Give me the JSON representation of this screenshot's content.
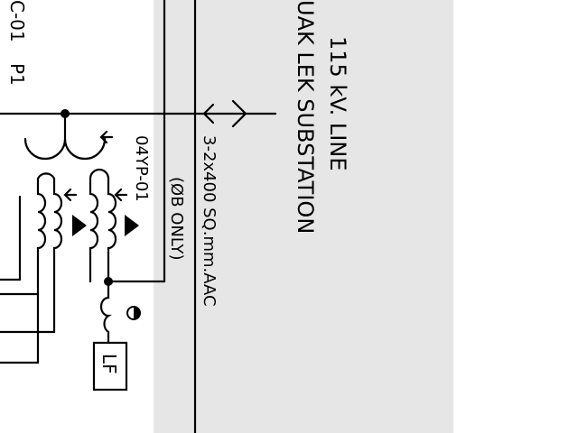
{
  "diagram": {
    "line_title": "115 kV. LINE",
    "substation_name": "UAK LEK SUBSTATION",
    "conductor_label": "3-2x400 SQ.mm.AAC",
    "phase_note": "(ØB ONLY)",
    "pt_label": "04YP-01",
    "left_label_a": "C-01",
    "left_label_b": "P1",
    "relay_box_label": "LF"
  },
  "colors": {
    "panel": "#e6e6e6",
    "page": "#ffffff",
    "ink": "#000000"
  }
}
